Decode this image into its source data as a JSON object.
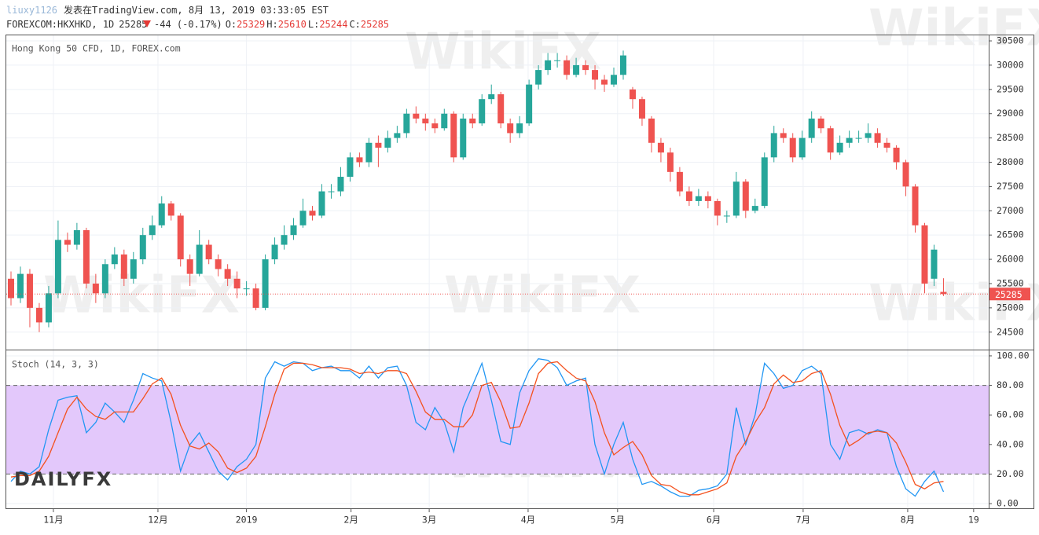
{
  "header": {
    "user": "liuxy1126",
    "published": "发表在TradingView.com, 8月 13, 2019 03:33:05 EST",
    "symbol": "FOREXCOM:HKXHKD, 1D",
    "change": "-44 (-0.17%)",
    "open_label": "O:",
    "high_label": "H:",
    "low_label": "L:",
    "close_label": "C:"
  },
  "watermark": "WikiFX",
  "logo": "DAILYFX",
  "chart_data": [
    {
      "type": "candlestick",
      "title": "Hong Kong 50 CFD, 1D, FOREX.com",
      "up_color": "#26a69a",
      "down_color": "#ef5350",
      "grid": true,
      "last_price_line": true,
      "xlim": [
        -0.5,
        103.8
      ],
      "xticks": [
        {
          "value": 4.5,
          "label": "11月"
        },
        {
          "value": 15.6,
          "label": "12月"
        },
        {
          "value": 25.0,
          "label": "2019"
        },
        {
          "value": 36.1,
          "label": "2月"
        },
        {
          "value": 44.4,
          "label": "3月"
        },
        {
          "value": 54.9,
          "label": "4月"
        },
        {
          "value": 64.4,
          "label": "5月"
        },
        {
          "value": 74.6,
          "label": "6月"
        },
        {
          "value": 84.1,
          "label": "7月"
        },
        {
          "value": 95.2,
          "label": "8月"
        },
        {
          "value": 102.2,
          "label": "19"
        }
      ],
      "ylim": [
        24140,
        30630
      ],
      "yticks": [
        24500,
        25000,
        25500,
        26000,
        26500,
        27000,
        27500,
        28000,
        28500,
        29000,
        29500,
        30000,
        30500
      ],
      "open": [
        25600,
        25200,
        25700,
        25000,
        24700,
        25300,
        26400,
        26300,
        26600,
        25500,
        25300,
        25900,
        26100,
        25600,
        26000,
        26500,
        26700,
        27150,
        26900,
        26000,
        25700,
        26300,
        26000,
        25800,
        25600,
        25400,
        25400,
        25000,
        26000,
        26300,
        26500,
        26700,
        27000,
        26900,
        27400,
        27400,
        27700,
        28100,
        28000,
        28400,
        28300,
        28500,
        28600,
        29000,
        28900,
        28800,
        28700,
        29000,
        28100,
        28900,
        28800,
        29300,
        29400,
        28800,
        28600,
        28800,
        29600,
        29900,
        30100,
        30100,
        29800,
        30000,
        29900,
        29700,
        29600,
        29800,
        29500,
        29300,
        28900,
        28400,
        28200,
        27800,
        27400,
        27200,
        27300,
        27200,
        26900,
        26900,
        27600,
        27000,
        27100,
        28100,
        28600,
        28500,
        28100,
        28500,
        28900,
        28700,
        28200,
        28400,
        28500,
        28500,
        28600,
        28400,
        28300,
        28000,
        27500,
        26700,
        25600,
        25329
      ],
      "high": [
        25750,
        25850,
        25800,
        25100,
        25450,
        26800,
        26550,
        26750,
        26650,
        25700,
        26000,
        26250,
        26200,
        26150,
        26650,
        26900,
        27300,
        27200,
        26950,
        26100,
        26600,
        26400,
        26100,
        25900,
        25750,
        25550,
        25500,
        26100,
        26450,
        26700,
        26850,
        27250,
        27100,
        27550,
        27550,
        27900,
        28200,
        28200,
        28500,
        28550,
        28650,
        28750,
        29100,
        29150,
        29000,
        28900,
        29100,
        29050,
        29000,
        29000,
        29400,
        29600,
        29450,
        28900,
        28950,
        29700,
        30000,
        30250,
        30250,
        30200,
        30150,
        30100,
        30000,
        29800,
        29950,
        30300,
        29550,
        29350,
        28950,
        28500,
        28300,
        27900,
        27500,
        27450,
        27400,
        27250,
        27000,
        27800,
        27650,
        27250,
        28200,
        28750,
        28700,
        28600,
        28650,
        29050,
        28950,
        28750,
        28550,
        28650,
        28650,
        28800,
        28700,
        28500,
        28350,
        28050,
        27550,
        26750,
        26300,
        25610
      ],
      "low": [
        25050,
        25100,
        24600,
        24500,
        24600,
        25200,
        26150,
        26200,
        25400,
        25100,
        25200,
        25800,
        25450,
        25500,
        25900,
        26400,
        26650,
        26800,
        25850,
        25450,
        25650,
        25900,
        25650,
        25450,
        25200,
        25250,
        24950,
        24950,
        25900,
        26200,
        26400,
        26650,
        26800,
        26850,
        27250,
        27300,
        27600,
        27900,
        27900,
        27900,
        28200,
        28400,
        28500,
        28800,
        28650,
        28600,
        28650,
        28000,
        28050,
        28700,
        28750,
        29200,
        28700,
        28400,
        28500,
        28750,
        29500,
        29800,
        29950,
        29700,
        29750,
        29800,
        29500,
        29450,
        29550,
        29700,
        29100,
        28750,
        28200,
        28000,
        27600,
        27300,
        27100,
        27100,
        27050,
        26700,
        26750,
        26850,
        26850,
        26950,
        27050,
        28000,
        28400,
        28000,
        28050,
        28400,
        28600,
        28050,
        28150,
        28300,
        28400,
        28400,
        28300,
        28200,
        27850,
        27300,
        26550,
        25300,
        25450,
        25244
      ],
      "close": [
        25200,
        25700,
        25000,
        24700,
        25300,
        26400,
        26300,
        26600,
        25500,
        25300,
        25900,
        26100,
        25600,
        26000,
        26500,
        26700,
        27150,
        26900,
        26000,
        25700,
        26300,
        26000,
        25800,
        25600,
        25400,
        25400,
        25000,
        26000,
        26300,
        26500,
        26700,
        27000,
        26900,
        27400,
        27400,
        27700,
        28100,
        28000,
        28400,
        28300,
        28500,
        28600,
        29000,
        28900,
        28800,
        28700,
        29000,
        28100,
        28900,
        28800,
        29300,
        29400,
        28800,
        28600,
        28800,
        29600,
        29900,
        30100,
        30100,
        29800,
        30000,
        29900,
        29700,
        29600,
        29800,
        30200,
        29300,
        28900,
        28400,
        28200,
        27800,
        27400,
        27200,
        27300,
        27200,
        26900,
        26900,
        27600,
        27000,
        27100,
        28100,
        28600,
        28500,
        28100,
        28500,
        28900,
        28700,
        28200,
        28400,
        28500,
        28500,
        28600,
        28400,
        28300,
        28000,
        27500,
        26700,
        25500,
        26200,
        25285
      ]
    },
    {
      "type": "line",
      "title": "Stoch (14, 3, 3)",
      "grid": true,
      "band": {
        "range": [
          20,
          80
        ],
        "color": "#e3c8fb"
      },
      "ylim": [
        -3.7,
        103.7
      ],
      "yticks": [
        {
          "value": 0,
          "label": "0.00"
        },
        {
          "value": 20,
          "label": "20.00"
        },
        {
          "value": 40,
          "label": "40.00"
        },
        {
          "value": 60,
          "label": "60.00"
        },
        {
          "value": 80,
          "label": "80.00"
        },
        {
          "value": 100,
          "label": "100.00"
        }
      ],
      "series": [
        {
          "color": "#2196f3",
          "values": [
            15,
            22,
            20,
            25,
            50,
            70,
            72,
            73,
            48,
            55,
            68,
            62,
            55,
            70,
            88,
            85,
            83,
            55,
            22,
            40,
            48,
            35,
            22,
            16,
            25,
            30,
            40,
            85,
            96,
            93,
            96,
            95,
            90,
            92,
            93,
            90,
            90,
            85,
            93,
            85,
            92,
            93,
            80,
            55,
            50,
            65,
            55,
            35,
            65,
            80,
            95,
            70,
            42,
            40,
            75,
            90,
            98,
            97,
            92,
            80,
            83,
            85,
            40,
            20,
            40,
            55,
            30,
            13,
            15,
            12,
            8,
            5,
            5,
            9,
            10,
            12,
            20,
            65,
            40,
            60,
            95,
            88,
            78,
            80,
            90,
            93,
            88,
            40,
            30,
            48,
            50,
            47,
            50,
            48,
            25,
            10,
            5,
            15,
            22,
            8
          ]
        },
        {
          "color": "#f4511e",
          "values": [
            18,
            19,
            19,
            22,
            32,
            48,
            64,
            72,
            64,
            59,
            57,
            62,
            62,
            62,
            71,
            81,
            85,
            74,
            53,
            39,
            37,
            41,
            35,
            24,
            21,
            24,
            32,
            52,
            74,
            91,
            95,
            95,
            94,
            92,
            92,
            92,
            91,
            88,
            89,
            88,
            90,
            90,
            88,
            76,
            62,
            57,
            57,
            52,
            52,
            60,
            80,
            82,
            69,
            51,
            52,
            68,
            88,
            95,
            96,
            90,
            85,
            83,
            69,
            48,
            33,
            38,
            42,
            33,
            19,
            13,
            12,
            8,
            6,
            6,
            8,
            10,
            14,
            32,
            42,
            55,
            65,
            81,
            87,
            82,
            83,
            88,
            90,
            74,
            53,
            39,
            43,
            48,
            49,
            48,
            41,
            28,
            13,
            10,
            14,
            15
          ]
        }
      ]
    }
  ]
}
